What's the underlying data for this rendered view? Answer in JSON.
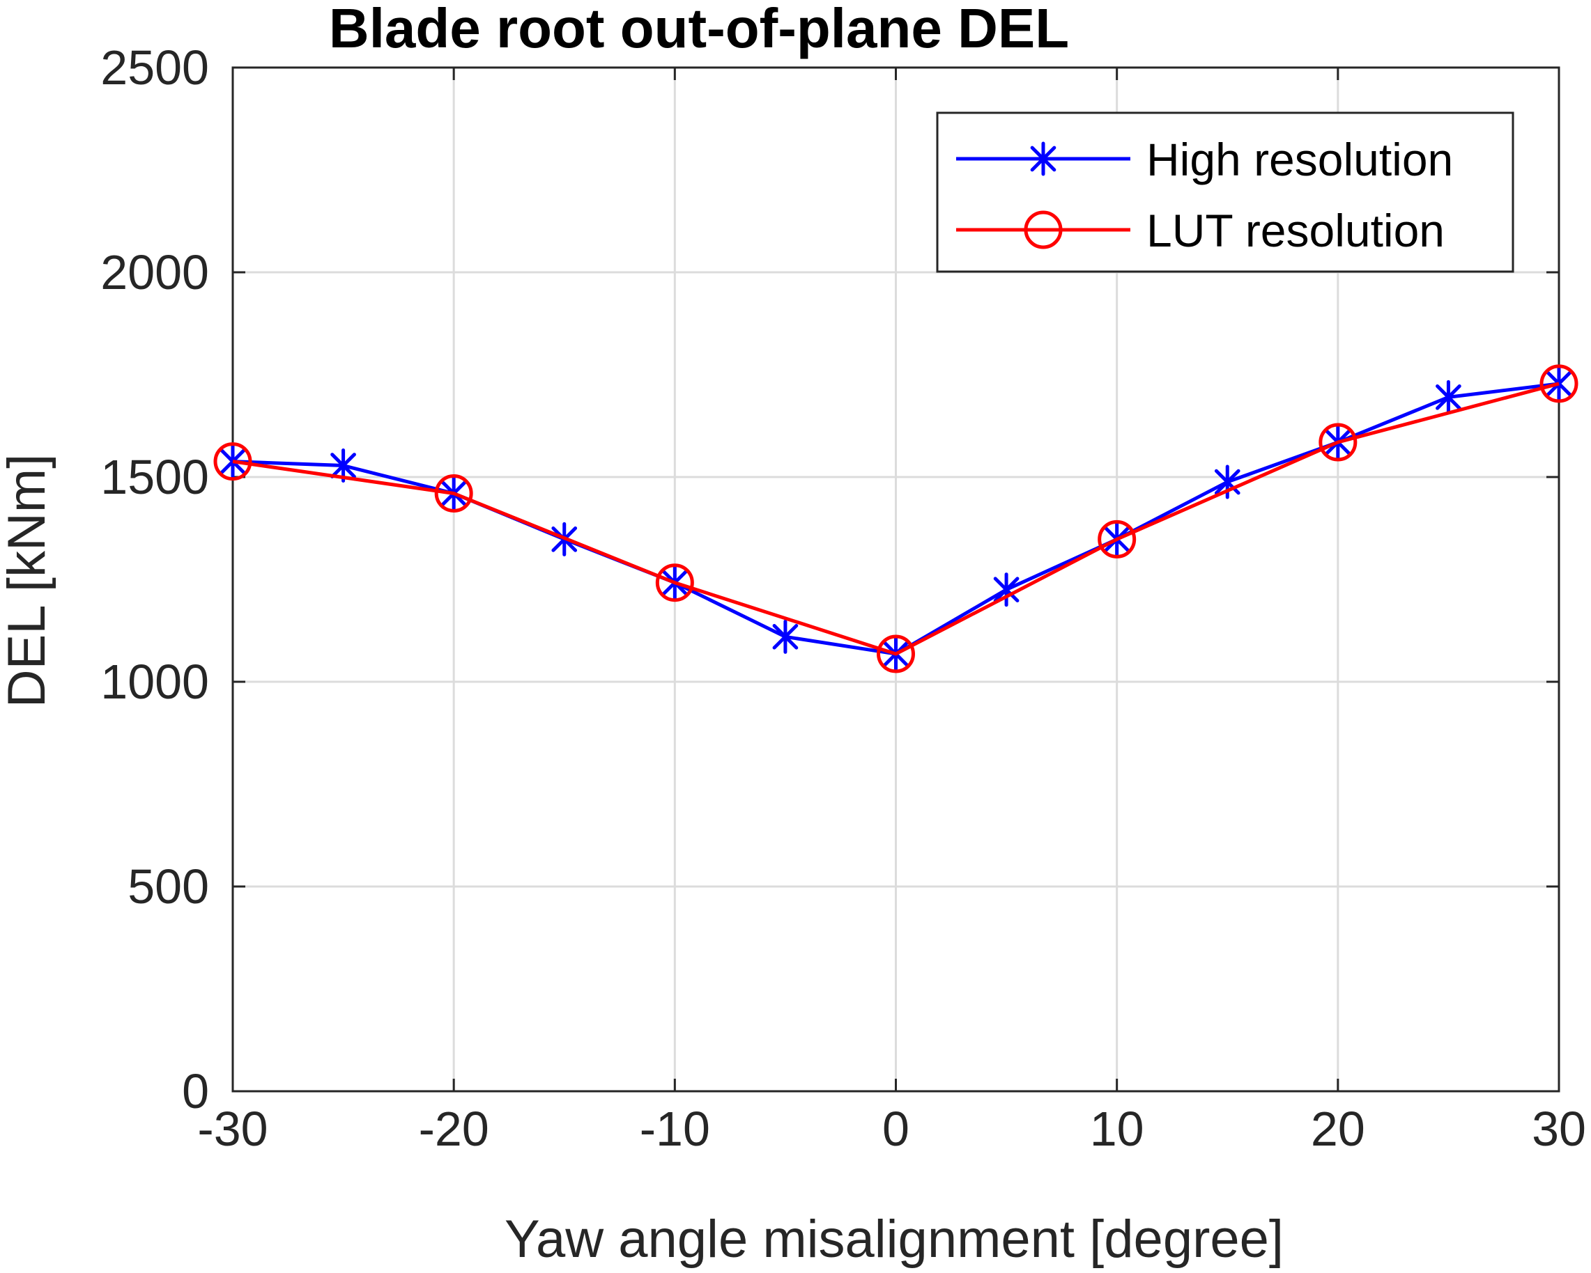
{
  "chart_data": {
    "type": "line",
    "title": "Blade root out-of-plane DEL",
    "xlabel": "Yaw angle misalignment [degree]",
    "ylabel": "DEL [kNm]",
    "xlim": [
      -30,
      30
    ],
    "ylim": [
      0,
      2500
    ],
    "xticks": [
      "-30",
      "-20",
      "-10",
      "0",
      "10",
      "20",
      "30"
    ],
    "yticks": [
      "0",
      "500",
      "1000",
      "1500",
      "2000",
      "2500"
    ],
    "grid": true,
    "legend_position": "top-right",
    "series": [
      {
        "name": "High resolution",
        "color": "#0000ff",
        "marker": "asterisk",
        "x": [
          -30,
          -25,
          -20,
          -15,
          -10,
          -5,
          0,
          5,
          10,
          15,
          20,
          25,
          30
        ],
        "y": [
          1538,
          1528,
          1460,
          1348,
          1242,
          1110,
          1068,
          1225,
          1348,
          1488,
          1585,
          1695,
          1728
        ]
      },
      {
        "name": "LUT resolution",
        "color": "#ff0000",
        "marker": "circle",
        "x": [
          -30,
          -20,
          -10,
          0,
          10,
          20,
          30
        ],
        "y": [
          1538,
          1460,
          1242,
          1068,
          1348,
          1585,
          1728
        ]
      }
    ]
  }
}
